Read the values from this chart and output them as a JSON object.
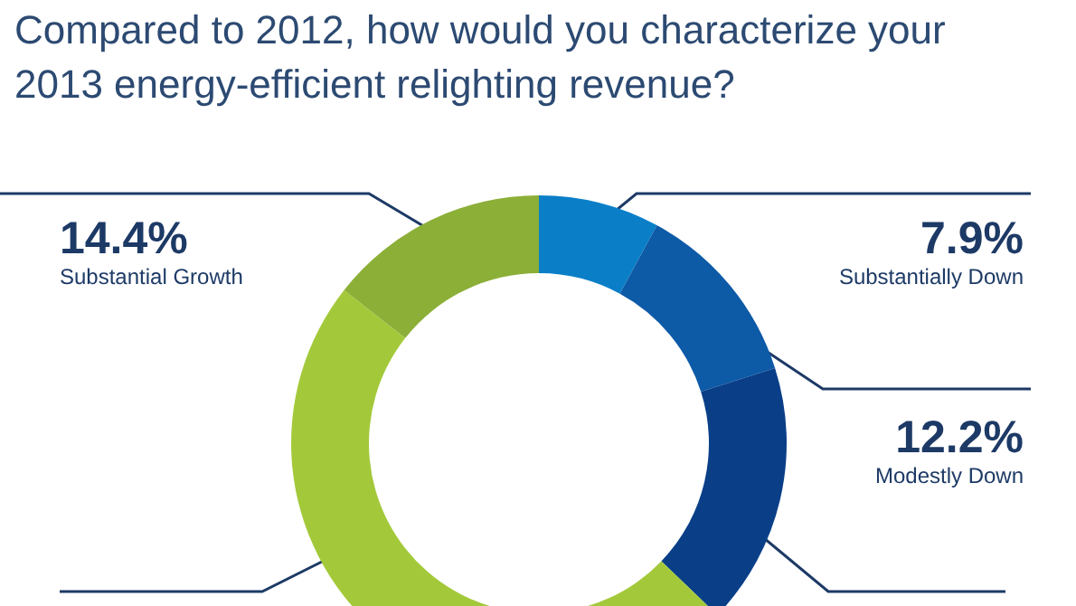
{
  "chart_data": {
    "type": "donut",
    "title": "Compared to 2012, how would you characterize your\n2013 energy-efficient relighting revenue?",
    "categories": [
      "Substantially Down",
      "Modestly Down",
      null,
      null,
      "Substantial Growth"
    ],
    "values": [
      7.9,
      12.2,
      17.1,
      48.4,
      14.4
    ],
    "value_labels": [
      "7.9%",
      "12.2%",
      null,
      null,
      "14.4%"
    ],
    "colors": [
      "#0a7fc8",
      "#0d5aa7",
      "#0a3f88",
      "#a3c93a",
      "#8caf38"
    ],
    "legend": false
  }
}
